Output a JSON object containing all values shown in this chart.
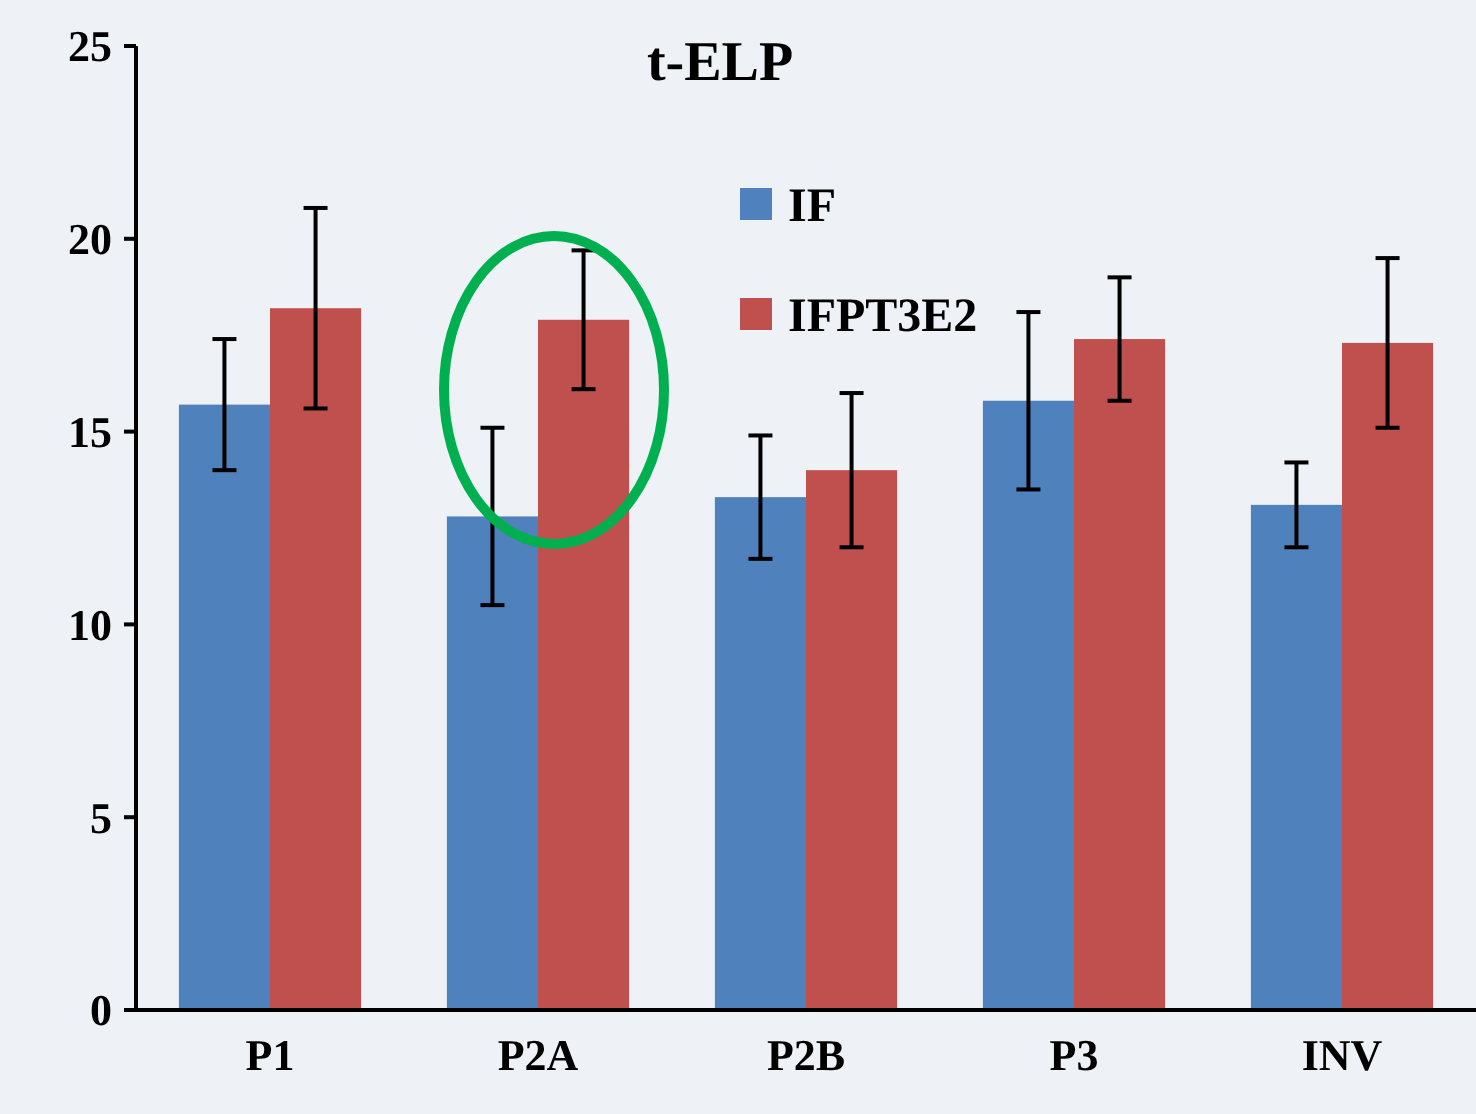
{
  "chart_data": {
    "type": "bar",
    "title": "t-ELP",
    "categories": [
      "P1",
      "P2A",
      "P2B",
      "P3",
      "INV"
    ],
    "series": [
      {
        "name": "IF",
        "color": "#4f81bd",
        "values": [
          15.7,
          12.8,
          13.3,
          15.8,
          13.1
        ],
        "errors": [
          1.7,
          2.3,
          1.6,
          2.3,
          1.1
        ]
      },
      {
        "name": "IFPT3E2",
        "color": "#c0504d",
        "values": [
          18.2,
          17.9,
          14.0,
          17.4,
          17.3
        ],
        "errors": [
          2.6,
          1.8,
          2.0,
          1.6,
          2.2
        ]
      }
    ],
    "ylim": [
      0,
      25
    ],
    "yticks": [
      0,
      5,
      10,
      15,
      20,
      25
    ],
    "grid": false,
    "legend": "top"
  }
}
